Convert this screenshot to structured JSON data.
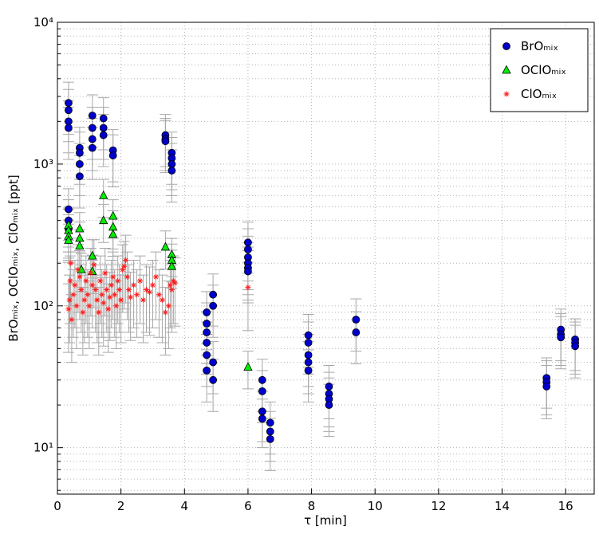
{
  "chart_data": {
    "type": "scatter",
    "x_label": "τ [min]",
    "y_label": "BrOₘᵢₓ, OClOₘᵢₓ, ClOₘᵢₓ [ppt]",
    "xlim": [
      0,
      16.9
    ],
    "xticks": [
      0,
      2,
      4,
      6,
      8,
      10,
      12,
      14,
      16
    ],
    "ylim": [
      4.7,
      10000
    ],
    "log_y": true,
    "yticks": [
      {
        "value": 10,
        "label": "10¹"
      },
      {
        "value": 100,
        "label": "10²"
      },
      {
        "value": 1000,
        "label": "10³"
      },
      {
        "value": 10000,
        "label": "10⁴"
      }
    ],
    "grid": true,
    "legend": "top-right",
    "error_color": "#a8a8a8",
    "series": [
      {
        "name": "BrOₘᵢₓ",
        "marker": "circle",
        "color": "#0000cc",
        "x": [
          0.35,
          0.35,
          0.35,
          0.35,
          0.35,
          0.35,
          0.35,
          0.7,
          0.7,
          0.7,
          0.7,
          1.1,
          1.1,
          1.1,
          1.1,
          1.45,
          1.45,
          1.45,
          1.75,
          1.75,
          3.4,
          3.4,
          3.4,
          3.6,
          3.6,
          3.6,
          3.6,
          4.7,
          4.7,
          4.7,
          4.7,
          4.7,
          4.7,
          4.9,
          4.9,
          4.9,
          4.9,
          6.0,
          6.0,
          6.0,
          6.0,
          6.0,
          6.0,
          6.45,
          6.45,
          6.45,
          6.45,
          6.7,
          6.7,
          6.7,
          7.9,
          7.9,
          7.9,
          7.9,
          7.9,
          8.55,
          8.55,
          8.55,
          8.55,
          9.4,
          9.4,
          15.4,
          15.4,
          15.4,
          15.85,
          15.85,
          15.85,
          16.3,
          16.3,
          16.3
        ],
        "values": [
          2700,
          2400,
          2000,
          1800,
          480,
          400,
          350,
          1300,
          1200,
          1000,
          820,
          2200,
          1800,
          1500,
          1300,
          2100,
          1800,
          1600,
          1250,
          1150,
          1600,
          1500,
          1450,
          1200,
          1100,
          1000,
          900,
          90,
          75,
          65,
          55,
          45,
          35,
          120,
          100,
          40,
          30,
          280,
          250,
          220,
          200,
          185,
          175,
          30,
          25,
          18,
          16,
          15,
          13,
          11.5,
          62,
          55,
          45,
          40,
          35,
          27,
          24,
          22,
          20,
          80,
          65,
          31,
          29,
          27,
          68,
          63,
          60,
          58,
          55,
          52
        ],
        "errors": [
          1080,
          960,
          800,
          720,
          190,
          160,
          140,
          520,
          480,
          400,
          330,
          880,
          720,
          600,
          520,
          840,
          720,
          640,
          500,
          460,
          640,
          600,
          580,
          480,
          440,
          400,
          360,
          36,
          30,
          26,
          22,
          18,
          14,
          48,
          40,
          16,
          12,
          110,
          100,
          90,
          80,
          75,
          70,
          12,
          10,
          7,
          6,
          6,
          5,
          4.6,
          25,
          22,
          18,
          16,
          14,
          11,
          10,
          9,
          8,
          32,
          26,
          12,
          12,
          11,
          27,
          25,
          24,
          23,
          22,
          21
        ]
      },
      {
        "name": "OClOₘᵢₓ",
        "marker": "triangle",
        "color": "#00ee00",
        "x": [
          0.35,
          0.35,
          0.35,
          0.35,
          0.7,
          0.7,
          0.7,
          0.75,
          1.1,
          1.1,
          1.45,
          1.45,
          1.75,
          1.75,
          1.75,
          3.4,
          3.6,
          3.6,
          3.6,
          6.0
        ],
        "values": [
          370,
          340,
          310,
          290,
          350,
          300,
          265,
          180,
          225,
          175,
          600,
          400,
          430,
          360,
          320,
          260,
          230,
          210,
          190,
          37
        ],
        "errors": [
          110,
          100,
          93,
          87,
          105,
          90,
          80,
          54,
          68,
          53,
          180,
          120,
          130,
          108,
          96,
          78,
          69,
          63,
          57,
          11
        ]
      },
      {
        "name": "ClOₘᵢₓ",
        "marker": "star",
        "color": "#ff2020",
        "x": [
          0.35,
          0.38,
          0.4,
          0.42,
          0.45,
          0.5,
          0.55,
          0.6,
          0.65,
          0.7,
          0.75,
          0.8,
          0.85,
          0.9,
          0.95,
          1.0,
          1.05,
          1.1,
          1.15,
          1.2,
          1.25,
          1.3,
          1.35,
          1.4,
          1.45,
          1.5,
          1.55,
          1.6,
          1.65,
          1.7,
          1.75,
          1.8,
          1.85,
          1.9,
          1.95,
          2.0,
          2.05,
          2.1,
          2.15,
          2.2,
          2.25,
          2.3,
          2.4,
          2.5,
          2.6,
          2.7,
          2.8,
          2.9,
          3.0,
          3.1,
          3.2,
          3.3,
          3.4,
          3.5,
          3.55,
          3.6,
          3.65,
          3.7,
          6.0
        ],
        "values": [
          95,
          110,
          150,
          200,
          80,
          120,
          140,
          100,
          180,
          160,
          130,
          90,
          110,
          150,
          120,
          100,
          170,
          140,
          195,
          130,
          110,
          90,
          150,
          120,
          105,
          170,
          130,
          95,
          115,
          140,
          160,
          120,
          100,
          150,
          130,
          110,
          180,
          190,
          210,
          160,
          130,
          115,
          140,
          120,
          150,
          110,
          130,
          125,
          140,
          160,
          120,
          110,
          90,
          100,
          140,
          130,
          150,
          145,
          135
        ],
        "errors": [
          48,
          55,
          75,
          100,
          40,
          60,
          70,
          50,
          90,
          80,
          65,
          45,
          55,
          75,
          60,
          50,
          85,
          70,
          98,
          65,
          55,
          45,
          75,
          60,
          53,
          85,
          65,
          48,
          58,
          70,
          80,
          60,
          50,
          75,
          65,
          55,
          90,
          95,
          105,
          80,
          65,
          58,
          70,
          60,
          75,
          55,
          65,
          63,
          70,
          80,
          60,
          55,
          45,
          50,
          70,
          65,
          75,
          73,
          68
        ]
      }
    ]
  }
}
